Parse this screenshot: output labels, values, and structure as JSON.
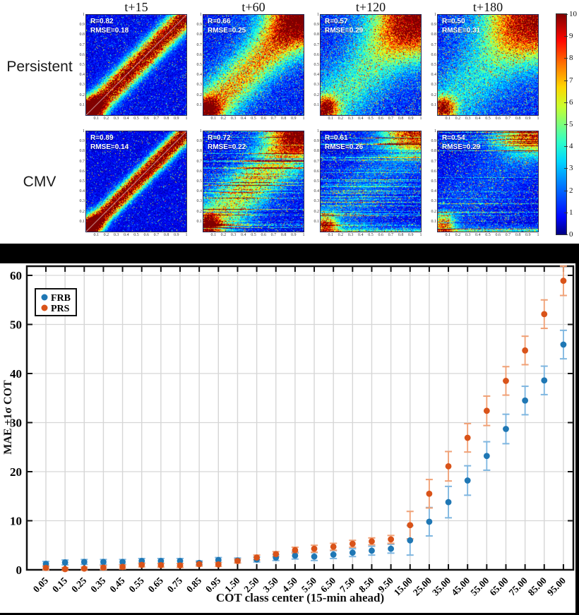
{
  "figure": {
    "top_panel_x_ticks": [
      "0.1",
      "0.2",
      "0.3",
      "0.4",
      "0.5",
      "0.6",
      "0.7",
      "0.8",
      "0.9",
      "1"
    ],
    "top_panel_y_ticks": [
      "1",
      "0.9",
      "0.8",
      "0.7",
      "0.6",
      "0.5",
      "0.4",
      "0.3",
      "0.2",
      "0.1"
    ],
    "colorbar_ticks": [
      "10",
      "9",
      "8",
      "7",
      "6",
      "5",
      "4",
      "3",
      "2",
      "1",
      "0"
    ]
  },
  "chart_data": [
    {
      "type": "heatmap",
      "rows": [
        "Persistent",
        "CMV"
      ],
      "cols": [
        "t+15",
        "t+60",
        "t+120",
        "t+180"
      ],
      "axis_range": [
        0,
        1
      ],
      "colorbar_range": [
        0,
        10
      ],
      "panels": [
        {
          "row": "Persistent",
          "col": "t+15",
          "R": 0.82,
          "RMSE": 0.18,
          "r_label": "R=0.82",
          "rmse_label": "RMSE=0.18"
        },
        {
          "row": "Persistent",
          "col": "t+60",
          "R": 0.66,
          "RMSE": 0.25,
          "r_label": "R=0.66",
          "rmse_label": "RMSE=0.25"
        },
        {
          "row": "Persistent",
          "col": "t+120",
          "R": 0.57,
          "RMSE": 0.29,
          "r_label": "R=0.57",
          "rmse_label": "RMSE=0.29"
        },
        {
          "row": "Persistent",
          "col": "t+180",
          "R": 0.5,
          "RMSE": 0.31,
          "r_label": "R=0.50",
          "rmse_label": "RMSE=0.31"
        },
        {
          "row": "CMV",
          "col": "t+15",
          "R": 0.89,
          "RMSE": 0.14,
          "r_label": "R=0.89",
          "rmse_label": "RMSE=0.14"
        },
        {
          "row": "CMV",
          "col": "t+60",
          "R": 0.72,
          "RMSE": 0.22,
          "r_label": "R=0.72",
          "rmse_label": "RMSE=0.22"
        },
        {
          "row": "CMV",
          "col": "t+120",
          "R": 0.61,
          "RMSE": 0.26,
          "r_label": "R=0.61",
          "rmse_label": "RMSE=0.26"
        },
        {
          "row": "CMV",
          "col": "t+180",
          "R": 0.54,
          "RMSE": 0.29,
          "r_label": "R=0.54",
          "rmse_label": "RMSE=0.29"
        }
      ]
    },
    {
      "type": "scatter",
      "title": "",
      "xlabel": "COT class center (15-min ahead)",
      "ylabel": "MAE ±1σ COT",
      "ylim": [
        0,
        62
      ],
      "yticks": [
        0,
        10,
        20,
        30,
        40,
        50,
        60
      ],
      "grid": true,
      "legend_position": "upper left",
      "categories": [
        "0.05",
        "0.15",
        "0.25",
        "0.35",
        "0.45",
        "0.55",
        "0.65",
        "0.75",
        "0.85",
        "0.95",
        "1.50",
        "2.50",
        "3.50",
        "4.50",
        "5.50",
        "6.50",
        "7.50",
        "8.50",
        "9.50",
        "15.00",
        "25.00",
        "35.00",
        "45.00",
        "55.00",
        "65.00",
        "75.00",
        "85.00",
        "95.00"
      ],
      "series": [
        {
          "name": "FRB",
          "color": "#1f77b4",
          "errorbar_color": "#7eb6e0",
          "values": [
            1.2,
            1.5,
            1.6,
            1.6,
            1.6,
            1.8,
            1.8,
            1.8,
            1.4,
            2.0,
            1.9,
            2.1,
            2.5,
            2.9,
            2.7,
            3.1,
            3.5,
            3.9,
            4.3,
            6.0,
            9.8,
            13.8,
            18.2,
            23.2,
            28.7,
            34.5,
            38.6,
            45.9
          ],
          "errors": [
            0.5,
            0.5,
            0.5,
            0.5,
            0.5,
            0.5,
            0.5,
            0.5,
            0.4,
            0.5,
            0.5,
            0.5,
            0.6,
            0.7,
            0.8,
            0.8,
            0.8,
            0.9,
            0.9,
            3.0,
            2.9,
            3.2,
            3.0,
            2.9,
            3.0,
            2.9,
            2.9,
            2.9
          ]
        },
        {
          "name": "PRS",
          "color": "#d95319",
          "errorbar_color": "#f0a075",
          "values": [
            0.4,
            0.15,
            0.25,
            0.45,
            0.6,
            1.0,
            0.95,
            0.9,
            1.15,
            1.1,
            1.8,
            2.5,
            3.2,
            4.0,
            4.3,
            4.7,
            5.3,
            5.8,
            6.2,
            9.1,
            15.5,
            21.1,
            26.9,
            32.4,
            38.5,
            44.7,
            52.1,
            58.9
          ],
          "errors": [
            0.4,
            0.3,
            0.3,
            0.4,
            0.4,
            0.4,
            0.4,
            0.4,
            0.4,
            0.4,
            0.4,
            0.5,
            0.5,
            0.6,
            0.7,
            0.7,
            0.7,
            0.7,
            0.8,
            2.8,
            2.9,
            3.0,
            2.9,
            3.0,
            2.9,
            2.9,
            2.9,
            3.0
          ]
        }
      ]
    }
  ]
}
